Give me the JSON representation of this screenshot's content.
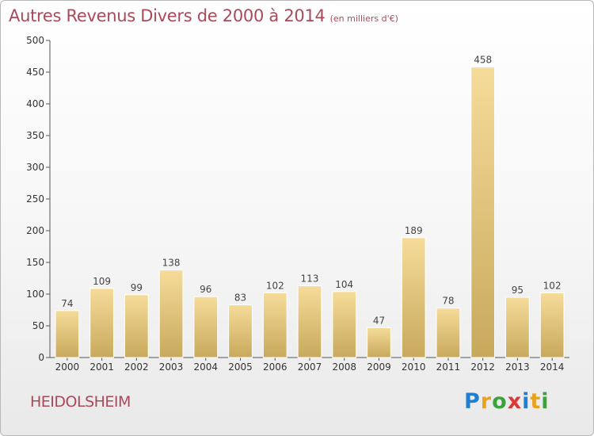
{
  "header": {
    "title": "Autres Revenus Divers de 2000 à 2014",
    "subtitle": "(en milliers d'€)"
  },
  "footer": {
    "commune": "HEIDOLSHEIM",
    "logo_letters": [
      "P",
      "r",
      "o",
      "x",
      "i",
      "t",
      "i"
    ],
    "logo_colors": [
      "#1f7fd0",
      "#e9a21a",
      "#3aa33a",
      "#d83a3a",
      "#1f7fd0",
      "#e9a21a",
      "#3aa33a"
    ]
  },
  "chart_data": {
    "type": "bar",
    "title": "Autres Revenus Divers de 2000 à 2014",
    "subtitle": "(en milliers d'€)",
    "categories": [
      "2000",
      "2001",
      "2002",
      "2003",
      "2004",
      "2005",
      "2006",
      "2007",
      "2008",
      "2009",
      "2010",
      "2011",
      "2012",
      "2013",
      "2014"
    ],
    "values": [
      74,
      109,
      99,
      138,
      96,
      83,
      102,
      113,
      104,
      47,
      189,
      78,
      458,
      95,
      102
    ],
    "ylim": [
      0,
      500
    ],
    "yticks": [
      0,
      50,
      100,
      150,
      200,
      250,
      300,
      350,
      400,
      450,
      500
    ],
    "grid": false,
    "bar_color_light": "#f6dc9a",
    "bar_color_dark": "#c8a95c",
    "value_labels": true
  }
}
